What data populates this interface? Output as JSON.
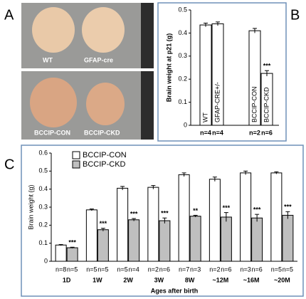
{
  "panels": [
    "A",
    "B",
    "C"
  ],
  "photos": {
    "top": [
      "WT",
      "GFAP-cre"
    ],
    "bottom": [
      "BCCIP-CON",
      "BCCIP-CKD"
    ]
  },
  "chart_data": [
    {
      "type": "bar",
      "ylabel": "Brain weight at p21 (g)",
      "categories": [
        "WT",
        "GFAP-CRE+/-",
        "BCCIP-CON",
        "BCCIP-CKD"
      ],
      "values": [
        0.435,
        0.44,
        0.41,
        0.225
      ],
      "errors": [
        0.008,
        0.008,
        0.01,
        0.012
      ],
      "n_labels": [
        "n=4",
        "n=4",
        "n=2",
        "n=6"
      ],
      "annotations": [
        null,
        null,
        null,
        "***"
      ],
      "color": "#ffffff",
      "ylim": [
        0,
        0.5
      ],
      "yticks": [
        0,
        0.1,
        0.2,
        0.3,
        0.4,
        0.5
      ]
    },
    {
      "type": "grouped_bar",
      "ylabel": "Brain weight (g)",
      "xlabel": "Ages after birth",
      "categories": [
        "1D",
        "1W",
        "2W",
        "3W",
        "8W",
        "~12M",
        "~16M",
        "~20M"
      ],
      "series": [
        {
          "name": "BCCIP-CON",
          "color": "#ffffff",
          "values": [
            0.09,
            0.285,
            0.405,
            0.41,
            0.48,
            0.455,
            0.49,
            0.49
          ],
          "errors": [
            0.003,
            0.005,
            0.01,
            0.01,
            0.01,
            0.012,
            0.01,
            0.006
          ],
          "n_labels": [
            "n=8",
            "n=5",
            "n=5",
            "n=2",
            "n=7",
            "n=2",
            "n=3",
            "n=5"
          ]
        },
        {
          "name": "BCCIP-CKD",
          "color": "#bfbfbf",
          "values": [
            0.075,
            0.175,
            0.23,
            0.225,
            0.25,
            0.245,
            0.24,
            0.255
          ],
          "errors": [
            0.003,
            0.008,
            0.007,
            0.015,
            0.005,
            0.025,
            0.02,
            0.02
          ],
          "n_labels": [
            "n=5",
            "n=5",
            "n=4",
            "n=6",
            "n=3",
            "n=6",
            "n=6",
            "n=5"
          ],
          "annotations": [
            "***",
            "***",
            "***",
            "***",
            "**",
            "***",
            "***",
            "***"
          ]
        }
      ],
      "ylim": [
        0,
        0.6
      ],
      "yticks": [
        0,
        0.1,
        0.2,
        0.3,
        0.4,
        0.5,
        0.6
      ],
      "legend": "upper left"
    }
  ]
}
